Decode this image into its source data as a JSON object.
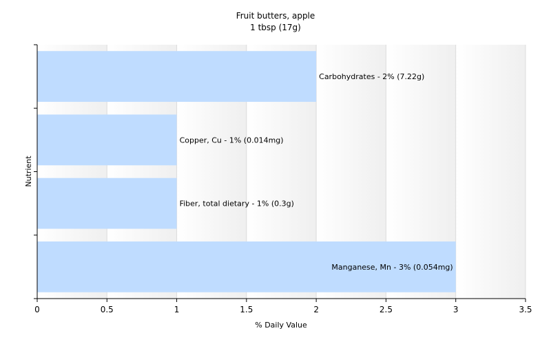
{
  "chart_data": {
    "type": "bar",
    "orientation": "horizontal",
    "title": "Fruit butters, apple",
    "subtitle": "1 tbsp (17g)",
    "xlabel": "% Daily Value",
    "ylabel": "Nutrient",
    "xlim": [
      0,
      3.5
    ],
    "xticks": [
      "0",
      "0.5",
      "1",
      "1.5",
      "2",
      "2.5",
      "3",
      "3.5"
    ],
    "categories": [
      "Carbohydrates",
      "Copper, Cu",
      "Fiber, total dietary",
      "Manganese, Mn"
    ],
    "values": [
      2,
      1,
      1,
      3
    ],
    "labels": [
      "Carbohydrates - 2% (7.22g)",
      "Copper, Cu - 1% (0.014mg)",
      "Fiber, total dietary - 1% (0.3g)",
      "Manganese, Mn - 3% (0.054mg)"
    ],
    "bar_color": "#bfdcff",
    "grid": true,
    "legend": "none"
  }
}
